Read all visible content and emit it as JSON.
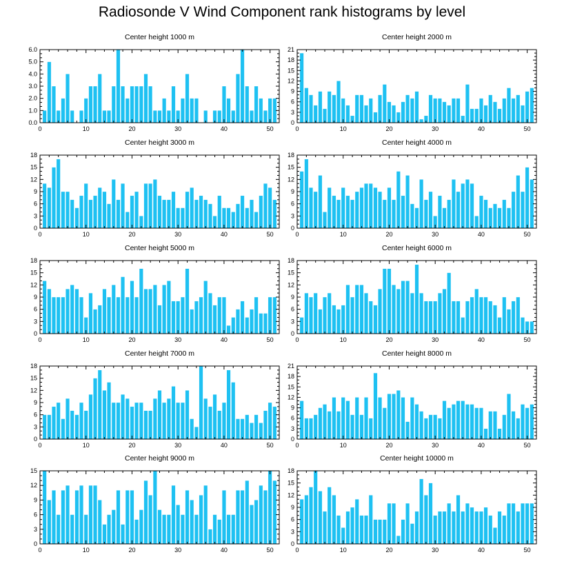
{
  "title": "Radiosonde V Wind Component rank histograms by level",
  "colors": {
    "bar": "#1ec1f2",
    "bar_edge": "#ffffff",
    "axis": "#000000"
  },
  "chart_data": [
    {
      "type": "bar",
      "title": "Center height 1000 m",
      "xlabel": "",
      "ylabel": "",
      "xlim": [
        0,
        52
      ],
      "ylim": [
        0,
        6
      ],
      "xticks": [
        0,
        10,
        20,
        30,
        40,
        50
      ],
      "yticks": [
        0,
        1,
        2,
        3,
        4,
        5,
        6
      ],
      "ytick_labels": [
        "0.0",
        "1.0",
        "2.0",
        "3.0",
        "4.0",
        "5.0",
        "6.0"
      ],
      "x": [
        1,
        2,
        3,
        4,
        5,
        6,
        7,
        8,
        9,
        10,
        11,
        12,
        13,
        14,
        15,
        16,
        17,
        18,
        19,
        20,
        21,
        22,
        23,
        24,
        25,
        26,
        27,
        28,
        29,
        30,
        31,
        32,
        33,
        34,
        35,
        36,
        37,
        38,
        39,
        40,
        41,
        42,
        43,
        44,
        45,
        46,
        47,
        48,
        49,
        50,
        51
      ],
      "values": [
        1,
        5,
        3,
        1,
        2,
        4,
        1,
        0,
        1,
        2,
        3,
        3,
        4,
        1,
        1,
        3,
        6,
        3,
        2,
        3,
        3,
        3,
        4,
        3,
        1,
        1,
        2,
        1,
        3,
        1,
        2,
        4,
        2,
        2,
        0,
        1,
        0,
        1,
        1,
        3,
        2,
        1,
        4,
        6,
        3,
        1,
        3,
        2,
        1,
        2,
        2
      ]
    },
    {
      "type": "bar",
      "title": "Center height 2000 m",
      "xlabel": "",
      "ylabel": "",
      "xlim": [
        0,
        52
      ],
      "ylim": [
        0,
        21
      ],
      "xticks": [
        0,
        10,
        20,
        30,
        40,
        50
      ],
      "yticks": [
        0,
        3,
        6,
        9,
        12,
        15,
        18,
        21
      ],
      "ytick_labels": [
        "0",
        "3",
        "6",
        "9",
        "12",
        "15",
        "18",
        "21"
      ],
      "x": [
        1,
        2,
        3,
        4,
        5,
        6,
        7,
        8,
        9,
        10,
        11,
        12,
        13,
        14,
        15,
        16,
        17,
        18,
        19,
        20,
        21,
        22,
        23,
        24,
        25,
        26,
        27,
        28,
        29,
        30,
        31,
        32,
        33,
        34,
        35,
        36,
        37,
        38,
        39,
        40,
        41,
        42,
        43,
        44,
        45,
        46,
        47,
        48,
        49,
        50,
        51
      ],
      "values": [
        20,
        10,
        8,
        5,
        9,
        4,
        9,
        8,
        12,
        7,
        5,
        2,
        8,
        8,
        5,
        7,
        3,
        8,
        11,
        6,
        5,
        3,
        6,
        8,
        7,
        9,
        1,
        2,
        8,
        7,
        7,
        6,
        5,
        7,
        7,
        2,
        11,
        4,
        4,
        7,
        5,
        8,
        6,
        4,
        7,
        10,
        7,
        8,
        5,
        9,
        10
      ]
    },
    {
      "type": "bar",
      "title": "Center height 3000 m",
      "xlabel": "",
      "ylabel": "",
      "xlim": [
        0,
        52
      ],
      "ylim": [
        0,
        18
      ],
      "xticks": [
        0,
        10,
        20,
        30,
        40,
        50
      ],
      "yticks": [
        0,
        3,
        6,
        9,
        12,
        15,
        18
      ],
      "ytick_labels": [
        "0",
        "3",
        "6",
        "9",
        "12",
        "15",
        "18"
      ],
      "x": [
        1,
        2,
        3,
        4,
        5,
        6,
        7,
        8,
        9,
        10,
        11,
        12,
        13,
        14,
        15,
        16,
        17,
        18,
        19,
        20,
        21,
        22,
        23,
        24,
        25,
        26,
        27,
        28,
        29,
        30,
        31,
        32,
        33,
        34,
        35,
        36,
        37,
        38,
        39,
        40,
        41,
        42,
        43,
        44,
        45,
        46,
        47,
        48,
        49,
        50,
        51
      ],
      "values": [
        11,
        10,
        15,
        17,
        9,
        9,
        7,
        5,
        8,
        11,
        7,
        8,
        10,
        9,
        6,
        12,
        7,
        11,
        4,
        8,
        9,
        3,
        11,
        11,
        12,
        8,
        7,
        7,
        9,
        5,
        5,
        9,
        10,
        7,
        8,
        7,
        6,
        3,
        8,
        5,
        5,
        4,
        6,
        8,
        5,
        7,
        4,
        8,
        11,
        10,
        7
      ]
    },
    {
      "type": "bar",
      "title": "Center height 4000 m",
      "xlabel": "",
      "ylabel": "",
      "xlim": [
        0,
        52
      ],
      "ylim": [
        0,
        18
      ],
      "xticks": [
        0,
        10,
        20,
        30,
        40,
        50
      ],
      "yticks": [
        0,
        3,
        6,
        9,
        12,
        15,
        18
      ],
      "ytick_labels": [
        "0",
        "3",
        "6",
        "9",
        "12",
        "15",
        "18"
      ],
      "x": [
        1,
        2,
        3,
        4,
        5,
        6,
        7,
        8,
        9,
        10,
        11,
        12,
        13,
        14,
        15,
        16,
        17,
        18,
        19,
        20,
        21,
        22,
        23,
        24,
        25,
        26,
        27,
        28,
        29,
        30,
        31,
        32,
        33,
        34,
        35,
        36,
        37,
        38,
        39,
        40,
        41,
        42,
        43,
        44,
        45,
        46,
        47,
        48,
        49,
        50,
        51
      ],
      "values": [
        14,
        17,
        10,
        9,
        13,
        4,
        10,
        8,
        7,
        10,
        8,
        7,
        9,
        10,
        11,
        11,
        10,
        9,
        7,
        10,
        7,
        14,
        8,
        13,
        6,
        5,
        12,
        7,
        9,
        3,
        8,
        5,
        7,
        12,
        9,
        11,
        12,
        11,
        3,
        8,
        7,
        5,
        6,
        5,
        7,
        5,
        9,
        13,
        9,
        15,
        12
      ]
    },
    {
      "type": "bar",
      "title": "Center height 5000 m",
      "xlabel": "",
      "ylabel": "",
      "xlim": [
        0,
        52
      ],
      "ylim": [
        0,
        18
      ],
      "xticks": [
        0,
        10,
        20,
        30,
        40,
        50
      ],
      "yticks": [
        0,
        3,
        6,
        9,
        12,
        15,
        18
      ],
      "ytick_labels": [
        "0",
        "3",
        "6",
        "9",
        "12",
        "15",
        "18"
      ],
      "x": [
        1,
        2,
        3,
        4,
        5,
        6,
        7,
        8,
        9,
        10,
        11,
        12,
        13,
        14,
        15,
        16,
        17,
        18,
        19,
        20,
        21,
        22,
        23,
        24,
        25,
        26,
        27,
        28,
        29,
        30,
        31,
        32,
        33,
        34,
        35,
        36,
        37,
        38,
        39,
        40,
        41,
        42,
        43,
        44,
        45,
        46,
        47,
        48,
        49,
        50,
        51
      ],
      "values": [
        13,
        11,
        9,
        9,
        9,
        11,
        12,
        11,
        9,
        4,
        10,
        6,
        7,
        11,
        9,
        12,
        9,
        14,
        9,
        13,
        9,
        16,
        11,
        11,
        12,
        7,
        12,
        13,
        8,
        8,
        9,
        16,
        6,
        8,
        9,
        13,
        10,
        7,
        9,
        9,
        2,
        4,
        6,
        8,
        4,
        6,
        9,
        5,
        5,
        9,
        9
      ]
    },
    {
      "type": "bar",
      "title": "Center height 6000 m",
      "xlabel": "",
      "ylabel": "",
      "xlim": [
        0,
        52
      ],
      "ylim": [
        0,
        18
      ],
      "xticks": [
        0,
        10,
        20,
        30,
        40,
        50
      ],
      "yticks": [
        0,
        3,
        6,
        9,
        12,
        15,
        18
      ],
      "ytick_labels": [
        "0",
        "3",
        "6",
        "9",
        "12",
        "15",
        "18"
      ],
      "x": [
        1,
        2,
        3,
        4,
        5,
        6,
        7,
        8,
        9,
        10,
        11,
        12,
        13,
        14,
        15,
        16,
        17,
        18,
        19,
        20,
        21,
        22,
        23,
        24,
        25,
        26,
        27,
        28,
        29,
        30,
        31,
        32,
        33,
        34,
        35,
        36,
        37,
        38,
        39,
        40,
        41,
        42,
        43,
        44,
        45,
        46,
        47,
        48,
        49,
        50,
        51
      ],
      "values": [
        4,
        10,
        9,
        10,
        6,
        9,
        10,
        7,
        6,
        7,
        12,
        9,
        12,
        12,
        10,
        8,
        7,
        11,
        16,
        16,
        12,
        11,
        13,
        13,
        10,
        17,
        10,
        8,
        8,
        8,
        10,
        11,
        15,
        8,
        8,
        4,
        8,
        9,
        11,
        9,
        9,
        8,
        7,
        4,
        9,
        6,
        8,
        9,
        4,
        3,
        3
      ]
    },
    {
      "type": "bar",
      "title": "Center height 7000 m",
      "xlabel": "",
      "ylabel": "",
      "xlim": [
        0,
        52
      ],
      "ylim": [
        0,
        18
      ],
      "xticks": [
        0,
        10,
        20,
        30,
        40,
        50
      ],
      "yticks": [
        0,
        3,
        6,
        9,
        12,
        15,
        18
      ],
      "ytick_labels": [
        "0",
        "3",
        "6",
        "9",
        "12",
        "15",
        "18"
      ],
      "x": [
        1,
        2,
        3,
        4,
        5,
        6,
        7,
        8,
        9,
        10,
        11,
        12,
        13,
        14,
        15,
        16,
        17,
        18,
        19,
        20,
        21,
        22,
        23,
        24,
        25,
        26,
        27,
        28,
        29,
        30,
        31,
        32,
        33,
        34,
        35,
        36,
        37,
        38,
        39,
        40,
        41,
        42,
        43,
        44,
        45,
        46,
        47,
        48,
        49,
        50,
        51
      ],
      "values": [
        6,
        6,
        8,
        9,
        5,
        10,
        7,
        6,
        9,
        7,
        11,
        15,
        17,
        12,
        14,
        9,
        9,
        11,
        10,
        8,
        9,
        9,
        7,
        7,
        10,
        12,
        9,
        10,
        13,
        9,
        9,
        12,
        5,
        3,
        18,
        10,
        8,
        11,
        7,
        9,
        17,
        14,
        5,
        5,
        6,
        4,
        6,
        4,
        7,
        9,
        8
      ]
    },
    {
      "type": "bar",
      "title": "Center height 8000 m",
      "xlabel": "",
      "ylabel": "",
      "xlim": [
        0,
        52
      ],
      "ylim": [
        0,
        21
      ],
      "xticks": [
        0,
        10,
        20,
        30,
        40,
        50
      ],
      "yticks": [
        0,
        3,
        6,
        9,
        12,
        15,
        18,
        21
      ],
      "ytick_labels": [
        "0",
        "3",
        "6",
        "9",
        "12",
        "15",
        "18",
        "21"
      ],
      "x": [
        1,
        2,
        3,
        4,
        5,
        6,
        7,
        8,
        9,
        10,
        11,
        12,
        13,
        14,
        15,
        16,
        17,
        18,
        19,
        20,
        21,
        22,
        23,
        24,
        25,
        26,
        27,
        28,
        29,
        30,
        31,
        32,
        33,
        34,
        35,
        36,
        37,
        38,
        39,
        40,
        41,
        42,
        43,
        44,
        45,
        46,
        47,
        48,
        49,
        50,
        51
      ],
      "values": [
        11,
        6,
        6,
        7,
        9,
        10,
        8,
        12,
        8,
        12,
        11,
        7,
        12,
        7,
        12,
        6,
        19,
        12,
        9,
        13,
        13,
        14,
        12,
        5,
        12,
        10,
        8,
        6,
        7,
        7,
        6,
        11,
        9,
        10,
        11,
        11,
        10,
        10,
        9,
        9,
        3,
        8,
        8,
        3,
        7,
        13,
        8,
        6,
        10,
        9,
        10
      ]
    },
    {
      "type": "bar",
      "title": "Center height 9000 m",
      "xlabel": "",
      "ylabel": "",
      "xlim": [
        0,
        52
      ],
      "ylim": [
        0,
        15
      ],
      "xticks": [
        0,
        10,
        20,
        30,
        40,
        50
      ],
      "yticks": [
        0,
        3,
        6,
        9,
        12,
        15
      ],
      "ytick_labels": [
        "0",
        "3",
        "6",
        "9",
        "12",
        "15"
      ],
      "x": [
        1,
        2,
        3,
        4,
        5,
        6,
        7,
        8,
        9,
        10,
        11,
        12,
        13,
        14,
        15,
        16,
        17,
        18,
        19,
        20,
        21,
        22,
        23,
        24,
        25,
        26,
        27,
        28,
        29,
        30,
        31,
        32,
        33,
        34,
        35,
        36,
        37,
        38,
        39,
        40,
        41,
        42,
        43,
        44,
        45,
        46,
        47,
        48,
        49,
        50,
        51
      ],
      "values": [
        15,
        9,
        11,
        6,
        11,
        12,
        6,
        11,
        12,
        6,
        12,
        12,
        9,
        4,
        6,
        7,
        11,
        4,
        11,
        11,
        5,
        7,
        13,
        10,
        15,
        7,
        6,
        6,
        12,
        8,
        6,
        11,
        9,
        6,
        10,
        12,
        3,
        6,
        5,
        11,
        6,
        6,
        11,
        11,
        13,
        8,
        9,
        12,
        11,
        15,
        13
      ]
    },
    {
      "type": "bar",
      "title": "Center height 10000 m",
      "xlabel": "",
      "ylabel": "",
      "xlim": [
        0,
        52
      ],
      "ylim": [
        0,
        18
      ],
      "xticks": [
        0,
        10,
        20,
        30,
        40,
        50
      ],
      "yticks": [
        0,
        3,
        6,
        9,
        12,
        15,
        18
      ],
      "ytick_labels": [
        "0",
        "3",
        "6",
        "9",
        "12",
        "15",
        "18"
      ],
      "x": [
        1,
        2,
        3,
        4,
        5,
        6,
        7,
        8,
        9,
        10,
        11,
        12,
        13,
        14,
        15,
        16,
        17,
        18,
        19,
        20,
        21,
        22,
        23,
        24,
        25,
        26,
        27,
        28,
        29,
        30,
        31,
        32,
        33,
        34,
        35,
        36,
        37,
        38,
        39,
        40,
        41,
        42,
        43,
        44,
        45,
        46,
        47,
        48,
        49,
        50,
        51
      ],
      "values": [
        11,
        12,
        14,
        18,
        13,
        8,
        14,
        12,
        7,
        4,
        8,
        9,
        11,
        7,
        7,
        12,
        6,
        6,
        6,
        10,
        10,
        2,
        6,
        10,
        5,
        8,
        16,
        12,
        15,
        7,
        8,
        8,
        10,
        8,
        12,
        8,
        10,
        9,
        8,
        8,
        9,
        7,
        4,
        8,
        7,
        10,
        10,
        8,
        10,
        10,
        10
      ]
    }
  ]
}
